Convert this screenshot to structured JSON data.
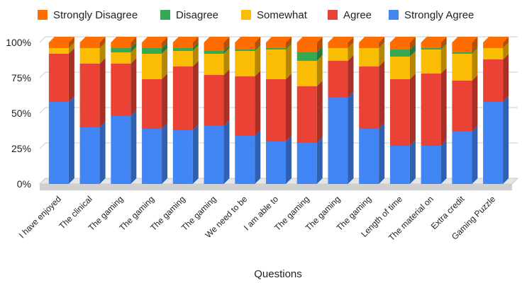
{
  "chart_data": {
    "type": "bar",
    "stacked": true,
    "percent": true,
    "three_d": true,
    "xlabel": "Questions",
    "ylabel": "",
    "ylim": [
      0,
      100
    ],
    "yticks": [
      "0%",
      "25%",
      "50%",
      "75%",
      "100%"
    ],
    "ytick_values": [
      0,
      25,
      50,
      75,
      100
    ],
    "grid": true,
    "legend_position": "top",
    "categories": [
      "I have enjoyed",
      "The clinical",
      "The gaming",
      "The gaming",
      "The gaming",
      "The gaming",
      "We need to be",
      "I am able to",
      "The gaming",
      "The gaming",
      "The gaming",
      "Length of time",
      "The material on",
      "Extra credit",
      "Gaming Puzzle"
    ],
    "series": [
      {
        "name": "Strongly Agree",
        "color": "#4285f4",
        "values": [
          58,
          40,
          48,
          39,
          38,
          41,
          34,
          30,
          29,
          61,
          39,
          27,
          27,
          37,
          58
        ]
      },
      {
        "name": "Agree",
        "color": "#ea4335",
        "values": [
          34,
          45,
          37,
          35,
          45,
          36,
          42,
          44,
          40,
          26,
          44,
          47,
          51,
          36,
          30
        ]
      },
      {
        "name": "Somewhat",
        "color": "#fbbc04",
        "values": [
          4,
          11,
          8,
          18,
          11,
          15,
          18,
          21,
          18,
          9,
          13,
          16,
          17,
          19,
          8
        ]
      },
      {
        "name": "Disagree",
        "color": "#34a853",
        "values": [
          0,
          0,
          3,
          4,
          2,
          2,
          1,
          1,
          6,
          0,
          0,
          5,
          1,
          1,
          0
        ]
      },
      {
        "name": "Strongly Disagree",
        "color": "#ff6d01",
        "values": [
          4,
          4,
          4,
          4,
          4,
          6,
          5,
          4,
          7,
          4,
          4,
          5,
          4,
          7,
          4
        ]
      }
    ]
  },
  "legend_order": [
    "Strongly Disagree",
    "Disagree",
    "Somewhat",
    "Agree",
    "Strongly Agree"
  ]
}
